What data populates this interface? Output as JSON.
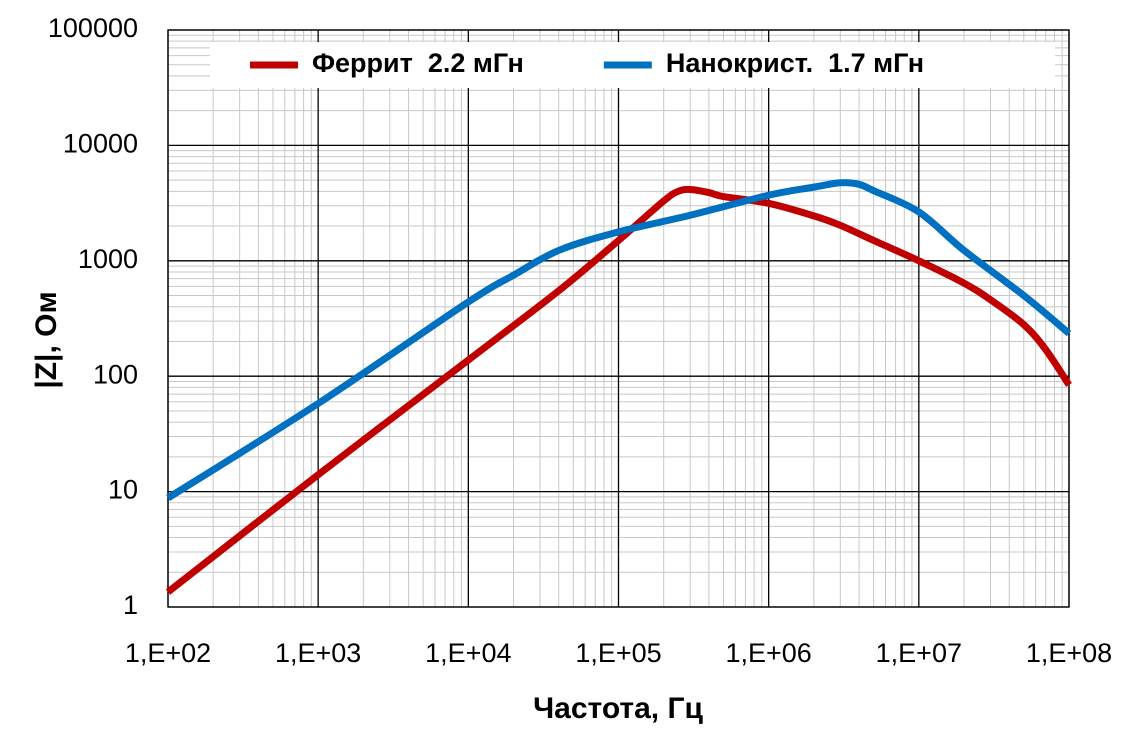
{
  "chart_data": {
    "type": "line",
    "x_label": "Частота, Гц",
    "y_label": "|Z|, Ом",
    "log_x": true,
    "log_y": true,
    "grid": true,
    "minor_grid": true,
    "legend": "top",
    "xlim": [
      100,
      100000000
    ],
    "xticks": [
      {
        "value": 100,
        "label": "1,E+02"
      },
      {
        "value": 1000,
        "label": "1,E+03"
      },
      {
        "value": 10000,
        "label": "1,E+04"
      },
      {
        "value": 100000,
        "label": "1,E+05"
      },
      {
        "value": 1000000,
        "label": "1,E+06"
      },
      {
        "value": 10000000,
        "label": "1,E+07"
      },
      {
        "value": 100000000,
        "label": "1,E+08"
      }
    ],
    "ylim": [
      1,
      100000
    ],
    "yticks": [
      1,
      10,
      100,
      1000,
      10000,
      100000
    ],
    "series": [
      {
        "name": "Феррит  2.2 мГн",
        "color": "#c00000",
        "x": [
          100,
          1000,
          10000,
          40000,
          100000,
          200000,
          250000,
          300000,
          400000,
          500000,
          1000000,
          2000000,
          3000000,
          5000000,
          10000000,
          20000000,
          30000000,
          50000000,
          70000000,
          100000000
        ],
        "values": [
          1.35,
          14,
          138,
          550,
          1500,
          3300,
          4000,
          4150,
          3900,
          3600,
          3150,
          2450,
          2030,
          1500,
          1000,
          640,
          460,
          280,
          170,
          84
        ]
      },
      {
        "name": "Нанокрист.  1.7 мГн",
        "color": "#0070c0",
        "x": [
          100,
          1000,
          10000,
          20000,
          40000,
          100000,
          300000,
          1000000,
          2000000,
          3000000,
          4000000,
          5000000,
          10000000,
          20000000,
          50000000,
          100000000
        ],
        "values": [
          8.8,
          58,
          440,
          750,
          1230,
          1780,
          2480,
          3700,
          4350,
          4750,
          4600,
          4050,
          2650,
          1230,
          500,
          235
        ]
      }
    ]
  }
}
